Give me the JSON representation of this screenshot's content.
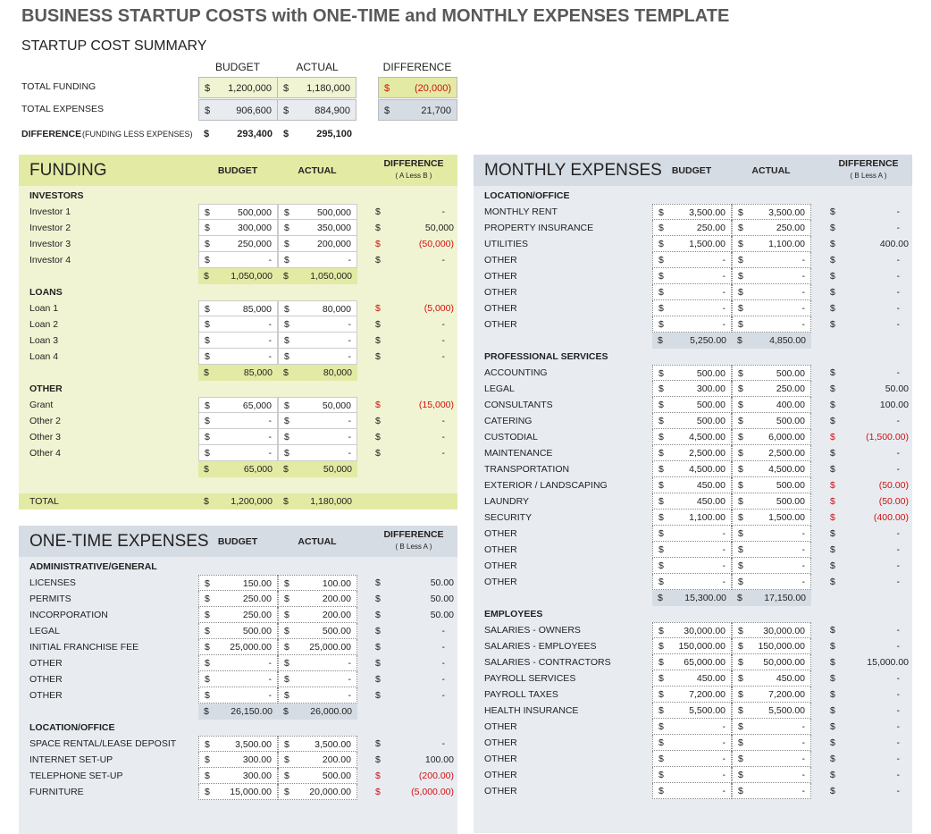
{
  "title": "BUSINESS STARTUP COSTS with ONE-TIME and MONTHLY EXPENSES TEMPLATE",
  "summary": {
    "heading": "STARTUP COST SUMMARY",
    "col_budget": "BUDGET",
    "col_actual": "ACTUAL",
    "col_diff": "DIFFERENCE",
    "currency": "$",
    "rows": [
      {
        "label": "TOTAL FUNDING",
        "budget": "1,200,000",
        "actual": "1,180,000",
        "diff": "(20,000)"
      },
      {
        "label": "TOTAL EXPENSES",
        "budget": "906,600",
        "actual": "884,900",
        "diff": "21,700"
      }
    ],
    "difference": {
      "label": "DIFFERENCE",
      "note": "(FUNDING LESS EXPENSES)",
      "budget": "293,400",
      "actual": "295,100"
    }
  },
  "colors": {
    "funding_header": "#e3eaa4",
    "funding_body": "#f0f4d2",
    "expense_header": "#d6dce4",
    "expense_body": "#e8ecf1",
    "negative": "#d01010"
  },
  "panels": [
    {
      "id": "funding",
      "title": "FUNDING",
      "budget": "BUDGET",
      "actual": "ACTUAL",
      "diff": "DIFFERENCE",
      "diff_note": "( A Less B )",
      "rows": [
        {
          "t": "sec",
          "label": "INVESTORS"
        },
        {
          "t": "item",
          "label": "Investor 1",
          "b": "500,000",
          "a": "500,000",
          "d": "-"
        },
        {
          "t": "item",
          "label": "Investor 2",
          "b": "300,000",
          "a": "350,000",
          "d": "50,000"
        },
        {
          "t": "item",
          "label": "Investor 3",
          "b": "250,000",
          "a": "200,000",
          "d": "(50,000)"
        },
        {
          "t": "item",
          "label": "Investor 4",
          "b": "-",
          "a": "-",
          "d": "-"
        },
        {
          "t": "subtotal",
          "b": "1,050,000",
          "a": "1,050,000"
        },
        {
          "t": "sec",
          "label": "LOANS"
        },
        {
          "t": "item",
          "label": "Loan 1",
          "b": "85,000",
          "a": "80,000",
          "d": "(5,000)"
        },
        {
          "t": "item",
          "label": "Loan 2",
          "b": "-",
          "a": "-",
          "d": "-"
        },
        {
          "t": "item",
          "label": "Loan 3",
          "b": "-",
          "a": "-",
          "d": "-"
        },
        {
          "t": "item",
          "label": "Loan 4",
          "b": "-",
          "a": "-",
          "d": "-"
        },
        {
          "t": "subtotal",
          "b": "85,000",
          "a": "80,000"
        },
        {
          "t": "sec",
          "label": "OTHER"
        },
        {
          "t": "item",
          "label": "Grant",
          "b": "65,000",
          "a": "50,000",
          "d": "(15,000)"
        },
        {
          "t": "item",
          "label": "Other 2",
          "b": "-",
          "a": "-",
          "d": "-"
        },
        {
          "t": "item",
          "label": "Other 3",
          "b": "-",
          "a": "-",
          "d": "-"
        },
        {
          "t": "item",
          "label": "Other 4",
          "b": "-",
          "a": "-",
          "d": "-"
        },
        {
          "t": "subtotal",
          "b": "65,000",
          "a": "50,000"
        },
        {
          "t": "blank"
        },
        {
          "t": "total",
          "label": "TOTAL",
          "b": "1,200,000",
          "a": "1,180,000"
        }
      ]
    },
    {
      "id": "one-time",
      "title": "ONE-TIME EXPENSES",
      "budget": "BUDGET",
      "actual": "ACTUAL",
      "diff": "DIFFERENCE",
      "diff_note": "( B Less A )",
      "rows": [
        {
          "t": "sec",
          "label": "ADMINISTRATIVE/GENERAL"
        },
        {
          "t": "item",
          "label": "LICENSES",
          "b": "150.00",
          "a": "100.00",
          "d": "50.00"
        },
        {
          "t": "item",
          "label": "PERMITS",
          "b": "250.00",
          "a": "200.00",
          "d": "50.00"
        },
        {
          "t": "item",
          "label": "INCORPORATION",
          "b": "250.00",
          "a": "200.00",
          "d": "50.00"
        },
        {
          "t": "item",
          "label": "LEGAL",
          "b": "500.00",
          "a": "500.00",
          "d": "-"
        },
        {
          "t": "item",
          "label": "INITIAL FRANCHISE FEE",
          "b": "25,000.00",
          "a": "25,000.00",
          "d": "-"
        },
        {
          "t": "item",
          "label": "OTHER",
          "b": "-",
          "a": "-",
          "d": "-"
        },
        {
          "t": "item",
          "label": "OTHER",
          "b": "-",
          "a": "-",
          "d": "-"
        },
        {
          "t": "item",
          "label": "OTHER",
          "b": "-",
          "a": "-",
          "d": "-"
        },
        {
          "t": "subtotal",
          "b": "26,150.00",
          "a": "26,000.00"
        },
        {
          "t": "sec",
          "label": "LOCATION/OFFICE"
        },
        {
          "t": "item",
          "label": "SPACE RENTAL/LEASE DEPOSIT",
          "b": "3,500.00",
          "a": "3,500.00",
          "d": "-"
        },
        {
          "t": "item",
          "label": "INTERNET SET-UP",
          "b": "300.00",
          "a": "200.00",
          "d": "100.00"
        },
        {
          "t": "item",
          "label": "TELEPHONE SET-UP",
          "b": "300.00",
          "a": "500.00",
          "d": "(200.00)"
        },
        {
          "t": "item",
          "label": "FURNITURE",
          "b": "15,000.00",
          "a": "20,000.00",
          "d": "(5,000.00)"
        }
      ]
    },
    {
      "id": "monthly",
      "title": "MONTHLY EXPENSES",
      "budget": "BUDGET",
      "actual": "ACTUAL",
      "diff": "DIFFERENCE",
      "diff_note": "( B Less A )",
      "rows": [
        {
          "t": "sec",
          "label": "LOCATION/OFFICE"
        },
        {
          "t": "item",
          "label": "MONTHLY RENT",
          "b": "3,500.00",
          "a": "3,500.00",
          "d": "-"
        },
        {
          "t": "item",
          "label": "PROPERTY INSURANCE",
          "b": "250.00",
          "a": "250.00",
          "d": "-"
        },
        {
          "t": "item",
          "label": "UTILITIES",
          "b": "1,500.00",
          "a": "1,100.00",
          "d": "400.00"
        },
        {
          "t": "item",
          "label": "OTHER",
          "b": "-",
          "a": "-",
          "d": "-"
        },
        {
          "t": "item",
          "label": "OTHER",
          "b": "-",
          "a": "-",
          "d": "-"
        },
        {
          "t": "item",
          "label": "OTHER",
          "b": "-",
          "a": "-",
          "d": "-"
        },
        {
          "t": "item",
          "label": "OTHER",
          "b": "-",
          "a": "-",
          "d": "-"
        },
        {
          "t": "item",
          "label": "OTHER",
          "b": "-",
          "a": "-",
          "d": "-"
        },
        {
          "t": "subtotal",
          "b": "5,250.00",
          "a": "4,850.00"
        },
        {
          "t": "sec",
          "label": "PROFESSIONAL SERVICES"
        },
        {
          "t": "item",
          "label": "ACCOUNTING",
          "b": "500.00",
          "a": "500.00",
          "d": "-"
        },
        {
          "t": "item",
          "label": "LEGAL",
          "b": "300.00",
          "a": "250.00",
          "d": "50.00"
        },
        {
          "t": "item",
          "label": "CONSULTANTS",
          "b": "500.00",
          "a": "400.00",
          "d": "100.00"
        },
        {
          "t": "item",
          "label": "CATERING",
          "b": "500.00",
          "a": "500.00",
          "d": "-"
        },
        {
          "t": "item",
          "label": "CUSTODIAL",
          "b": "4,500.00",
          "a": "6,000.00",
          "d": "(1,500.00)"
        },
        {
          "t": "item",
          "label": "MAINTENANCE",
          "b": "2,500.00",
          "a": "2,500.00",
          "d": "-"
        },
        {
          "t": "item",
          "label": "TRANSPORTATION",
          "b": "4,500.00",
          "a": "4,500.00",
          "d": "-"
        },
        {
          "t": "item",
          "label": "EXTERIOR / LANDSCAPING",
          "b": "450.00",
          "a": "500.00",
          "d": "(50.00)"
        },
        {
          "t": "item",
          "label": "LAUNDRY",
          "b": "450.00",
          "a": "500.00",
          "d": "(50.00)"
        },
        {
          "t": "item",
          "label": "SECURITY",
          "b": "1,100.00",
          "a": "1,500.00",
          "d": "(400.00)"
        },
        {
          "t": "item",
          "label": "OTHER",
          "b": "-",
          "a": "-",
          "d": "-"
        },
        {
          "t": "item",
          "label": "OTHER",
          "b": "-",
          "a": "-",
          "d": "-"
        },
        {
          "t": "item",
          "label": "OTHER",
          "b": "-",
          "a": "-",
          "d": "-"
        },
        {
          "t": "item",
          "label": "OTHER",
          "b": "-",
          "a": "-",
          "d": "-"
        },
        {
          "t": "subtotal",
          "b": "15,300.00",
          "a": "17,150.00"
        },
        {
          "t": "sec",
          "label": "EMPLOYEES"
        },
        {
          "t": "item",
          "label": "SALARIES - OWNERS",
          "b": "30,000.00",
          "a": "30,000.00",
          "d": "-"
        },
        {
          "t": "item",
          "label": "SALARIES - EMPLOYEES",
          "b": "150,000.00",
          "a": "150,000.00",
          "d": "-"
        },
        {
          "t": "item",
          "label": "SALARIES - CONTRACTORS",
          "b": "65,000.00",
          "a": "50,000.00",
          "d": "15,000.00"
        },
        {
          "t": "item",
          "label": "PAYROLL SERVICES",
          "b": "450.00",
          "a": "450.00",
          "d": "-"
        },
        {
          "t": "item",
          "label": "PAYROLL TAXES",
          "b": "7,200.00",
          "a": "7,200.00",
          "d": "-"
        },
        {
          "t": "item",
          "label": "HEALTH INSURANCE",
          "b": "5,500.00",
          "a": "5,500.00",
          "d": "-"
        },
        {
          "t": "item",
          "label": "OTHER",
          "b": "-",
          "a": "-",
          "d": "-"
        },
        {
          "t": "item",
          "label": "OTHER",
          "b": "-",
          "a": "-",
          "d": "-"
        },
        {
          "t": "item",
          "label": "OTHER",
          "b": "-",
          "a": "-",
          "d": "-"
        },
        {
          "t": "item",
          "label": "OTHER",
          "b": "-",
          "a": "-",
          "d": "-"
        },
        {
          "t": "item",
          "label": "OTHER",
          "b": "-",
          "a": "-",
          "d": "-"
        }
      ]
    }
  ]
}
